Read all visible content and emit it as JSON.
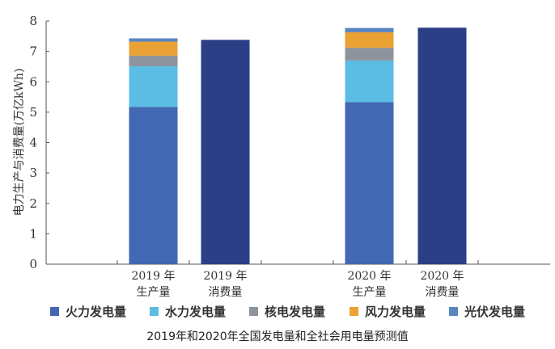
{
  "chart_data": {
    "type": "bar",
    "stacked": true,
    "caption": "2019年和2020年全国发电量和全社会用电量预测值",
    "ylabel": "电力生产与消费量(万亿kWh)",
    "xlabel": "",
    "ylim": [
      0,
      8
    ],
    "yticks": [
      0,
      1,
      2,
      3,
      4,
      5,
      6,
      7,
      8
    ],
    "grid": false,
    "legend_position": "bottom",
    "categories": [
      {
        "line1": "2019 年",
        "line2": "生产量"
      },
      {
        "line1": "2019 年",
        "line2": "消费量"
      },
      {
        "line1": "2020 年",
        "line2": "生产量"
      },
      {
        "line1": "2020 年",
        "line2": "消费量"
      }
    ],
    "series": [
      {
        "name": "火力发电量",
        "color": "#4368b3",
        "values": [
          5.17,
          null,
          5.33,
          null
        ]
      },
      {
        "name": "水力发电量",
        "color": "#5bbde4",
        "values": [
          1.34,
          null,
          1.37,
          null
        ]
      },
      {
        "name": "核电发电量",
        "color": "#8e949c",
        "values": [
          0.35,
          null,
          0.42,
          null
        ]
      },
      {
        "name": "风力发电量",
        "color": "#eba234",
        "values": [
          0.46,
          null,
          0.51,
          null
        ]
      },
      {
        "name": "光伏发电量",
        "color": "#5a86c0",
        "values": [
          0.11,
          null,
          0.14,
          null
        ]
      }
    ],
    "consumption": {
      "color": "#2b3f86",
      "values": [
        null,
        7.38,
        null,
        7.78
      ]
    }
  }
}
